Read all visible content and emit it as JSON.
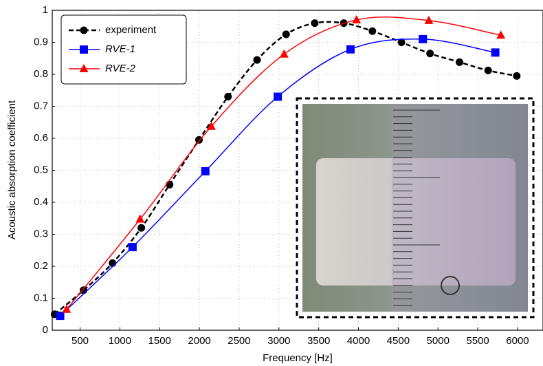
{
  "chart_data": {
    "type": "line",
    "xlabel": "Frequency [Hz]",
    "ylabel": "Acoustic absorption coefficient",
    "xlim": [
      150,
      6320
    ],
    "ylim": [
      0,
      1
    ],
    "xticks": [
      500,
      1000,
      1500,
      2000,
      2500,
      3000,
      3500,
      4000,
      4500,
      5000,
      5500,
      6000
    ],
    "yticks": [
      0,
      0.1,
      0.2,
      0.3,
      0.4,
      0.5,
      0.6,
      0.7,
      0.8,
      0.9,
      1
    ],
    "grid": true,
    "legend": "upper left",
    "series": [
      {
        "name": "experiment",
        "color": "#000000",
        "marker": "circle",
        "line_style": "dashed",
        "x": [
          180,
          543,
          908,
          1270,
          1625,
          1995,
          2360,
          2725,
          3090,
          3450,
          3815,
          4175,
          4540,
          4900,
          5270,
          5630,
          5990
        ],
        "values": [
          0.05,
          0.125,
          0.21,
          0.32,
          0.455,
          0.595,
          0.73,
          0.845,
          0.925,
          0.96,
          0.96,
          0.935,
          0.9,
          0.865,
          0.838,
          0.812,
          0.795
        ]
      },
      {
        "name": "RVE-1",
        "color": "#0000ff",
        "marker": "square",
        "line_style": "solid",
        "x": [
          250,
          1160,
          2075,
          2985,
          3900,
          4810,
          5720
        ],
        "values": [
          0.045,
          0.26,
          0.497,
          0.73,
          0.878,
          0.91,
          0.868
        ]
      },
      {
        "name": "RVE-2",
        "color": "#ff0000",
        "marker": "triangle",
        "line_style": "solid",
        "x": [
          330,
          1255,
          2150,
          3065,
          3975,
          4885,
          5790
        ],
        "values": [
          0.065,
          0.347,
          0.637,
          0.863,
          0.97,
          0.968,
          0.922
        ]
      }
    ]
  }
}
